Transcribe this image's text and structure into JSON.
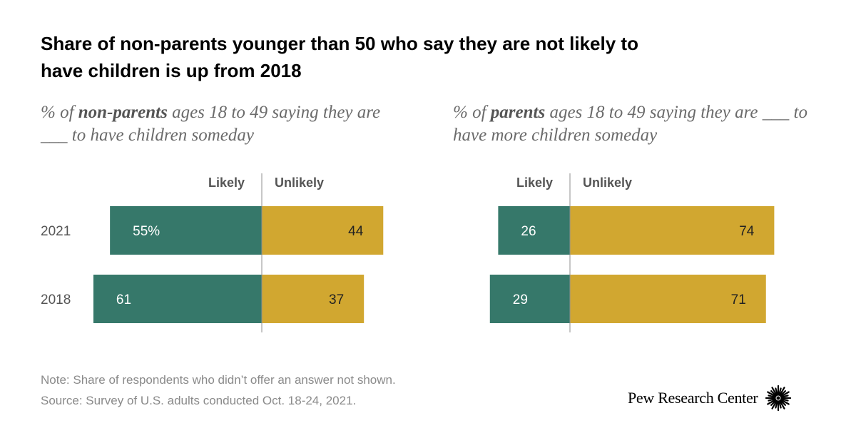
{
  "title": "Share of non-parents younger than 50 who say they are not likely to have children is up from 2018",
  "panels": [
    {
      "subtitle": {
        "pre": "% of ",
        "bold": "non-parents",
        "post": " ages 18 to 49 saying they are ___ to have children someday"
      }
    },
    {
      "subtitle": {
        "pre": "% of ",
        "bold": "parents",
        "post": " ages 18 to 49 saying they are ___ to have more children someday"
      }
    }
  ],
  "chart_data": [
    {
      "type": "bar",
      "orientation": "horizontal-diverging",
      "categories": [
        "2021",
        "2018"
      ],
      "series": [
        {
          "name": "Likely",
          "values": [
            55,
            61
          ],
          "labels": [
            "55%",
            "61"
          ],
          "color": "#36786a"
        },
        {
          "name": "Unlikely",
          "values": [
            44,
            37
          ],
          "labels": [
            "44",
            "37"
          ],
          "color": "#d1a730"
        }
      ]
    },
    {
      "type": "bar",
      "orientation": "horizontal-diverging",
      "categories": [
        "2021",
        "2018"
      ],
      "series": [
        {
          "name": "Likely",
          "values": [
            26,
            29
          ],
          "labels": [
            "26",
            "29"
          ],
          "color": "#36786a"
        },
        {
          "name": "Unlikely",
          "values": [
            74,
            71
          ],
          "labels": [
            "74",
            "71"
          ],
          "color": "#d1a730"
        }
      ]
    }
  ],
  "note": "Note: Share of respondents who didn’t offer an answer not shown.",
  "source": "Source: Survey of U.S. adults conducted Oct. 18-24, 2021.",
  "brand": {
    "name": "Pew Research Center",
    "icon": "pew-sunburst-icon"
  }
}
